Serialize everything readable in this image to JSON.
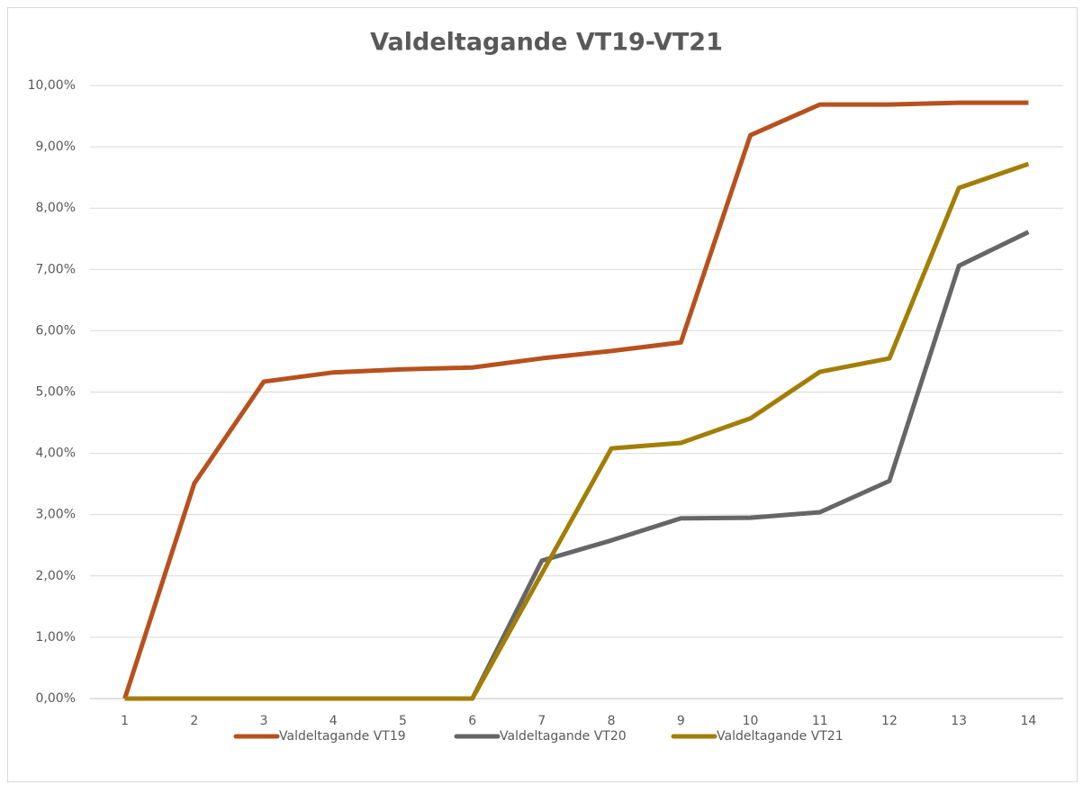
{
  "chart_data": {
    "type": "line",
    "title": "Valdeltagande VT19-VT21",
    "categories": [
      "1",
      "2",
      "3",
      "4",
      "5",
      "6",
      "7",
      "8",
      "9",
      "10",
      "11",
      "12",
      "13",
      "14"
    ],
    "series": [
      {
        "name": "Valdeltagande VT19",
        "color": "#b8501e",
        "values": [
          0,
          3.51,
          5.17,
          5.32,
          5.37,
          5.4,
          5.55,
          5.67,
          5.81,
          9.19,
          9.69,
          9.69,
          9.72,
          9.72
        ]
      },
      {
        "name": "Valdeltagande VT20",
        "color": "#666666",
        "values": [
          0,
          0,
          0,
          0,
          0,
          0,
          2.25,
          2.58,
          2.94,
          2.95,
          3.04,
          3.55,
          7.06,
          7.61
        ]
      },
      {
        "name": "Valdeltagande VT21",
        "color": "#a27e04",
        "values": [
          0,
          0,
          0,
          0,
          0,
          0,
          2.04,
          4.08,
          4.17,
          4.57,
          5.33,
          5.55,
          8.33,
          8.72
        ]
      }
    ],
    "ylim": [
      0,
      10
    ],
    "yticks": [
      {
        "value": 0,
        "label": "0,00%"
      },
      {
        "value": 1,
        "label": "1,00%"
      },
      {
        "value": 2,
        "label": "2,00%"
      },
      {
        "value": 3,
        "label": "3,00%"
      },
      {
        "value": 4,
        "label": "4,00%"
      },
      {
        "value": 5,
        "label": "5,00%"
      },
      {
        "value": 6,
        "label": "6,00%"
      },
      {
        "value": 7,
        "label": "7,00%"
      },
      {
        "value": 8,
        "label": "8,00%"
      },
      {
        "value": 9,
        "label": "9,00%"
      },
      {
        "value": 10,
        "label": "10,00%"
      }
    ],
    "grid": true,
    "legend": "bottom"
  }
}
